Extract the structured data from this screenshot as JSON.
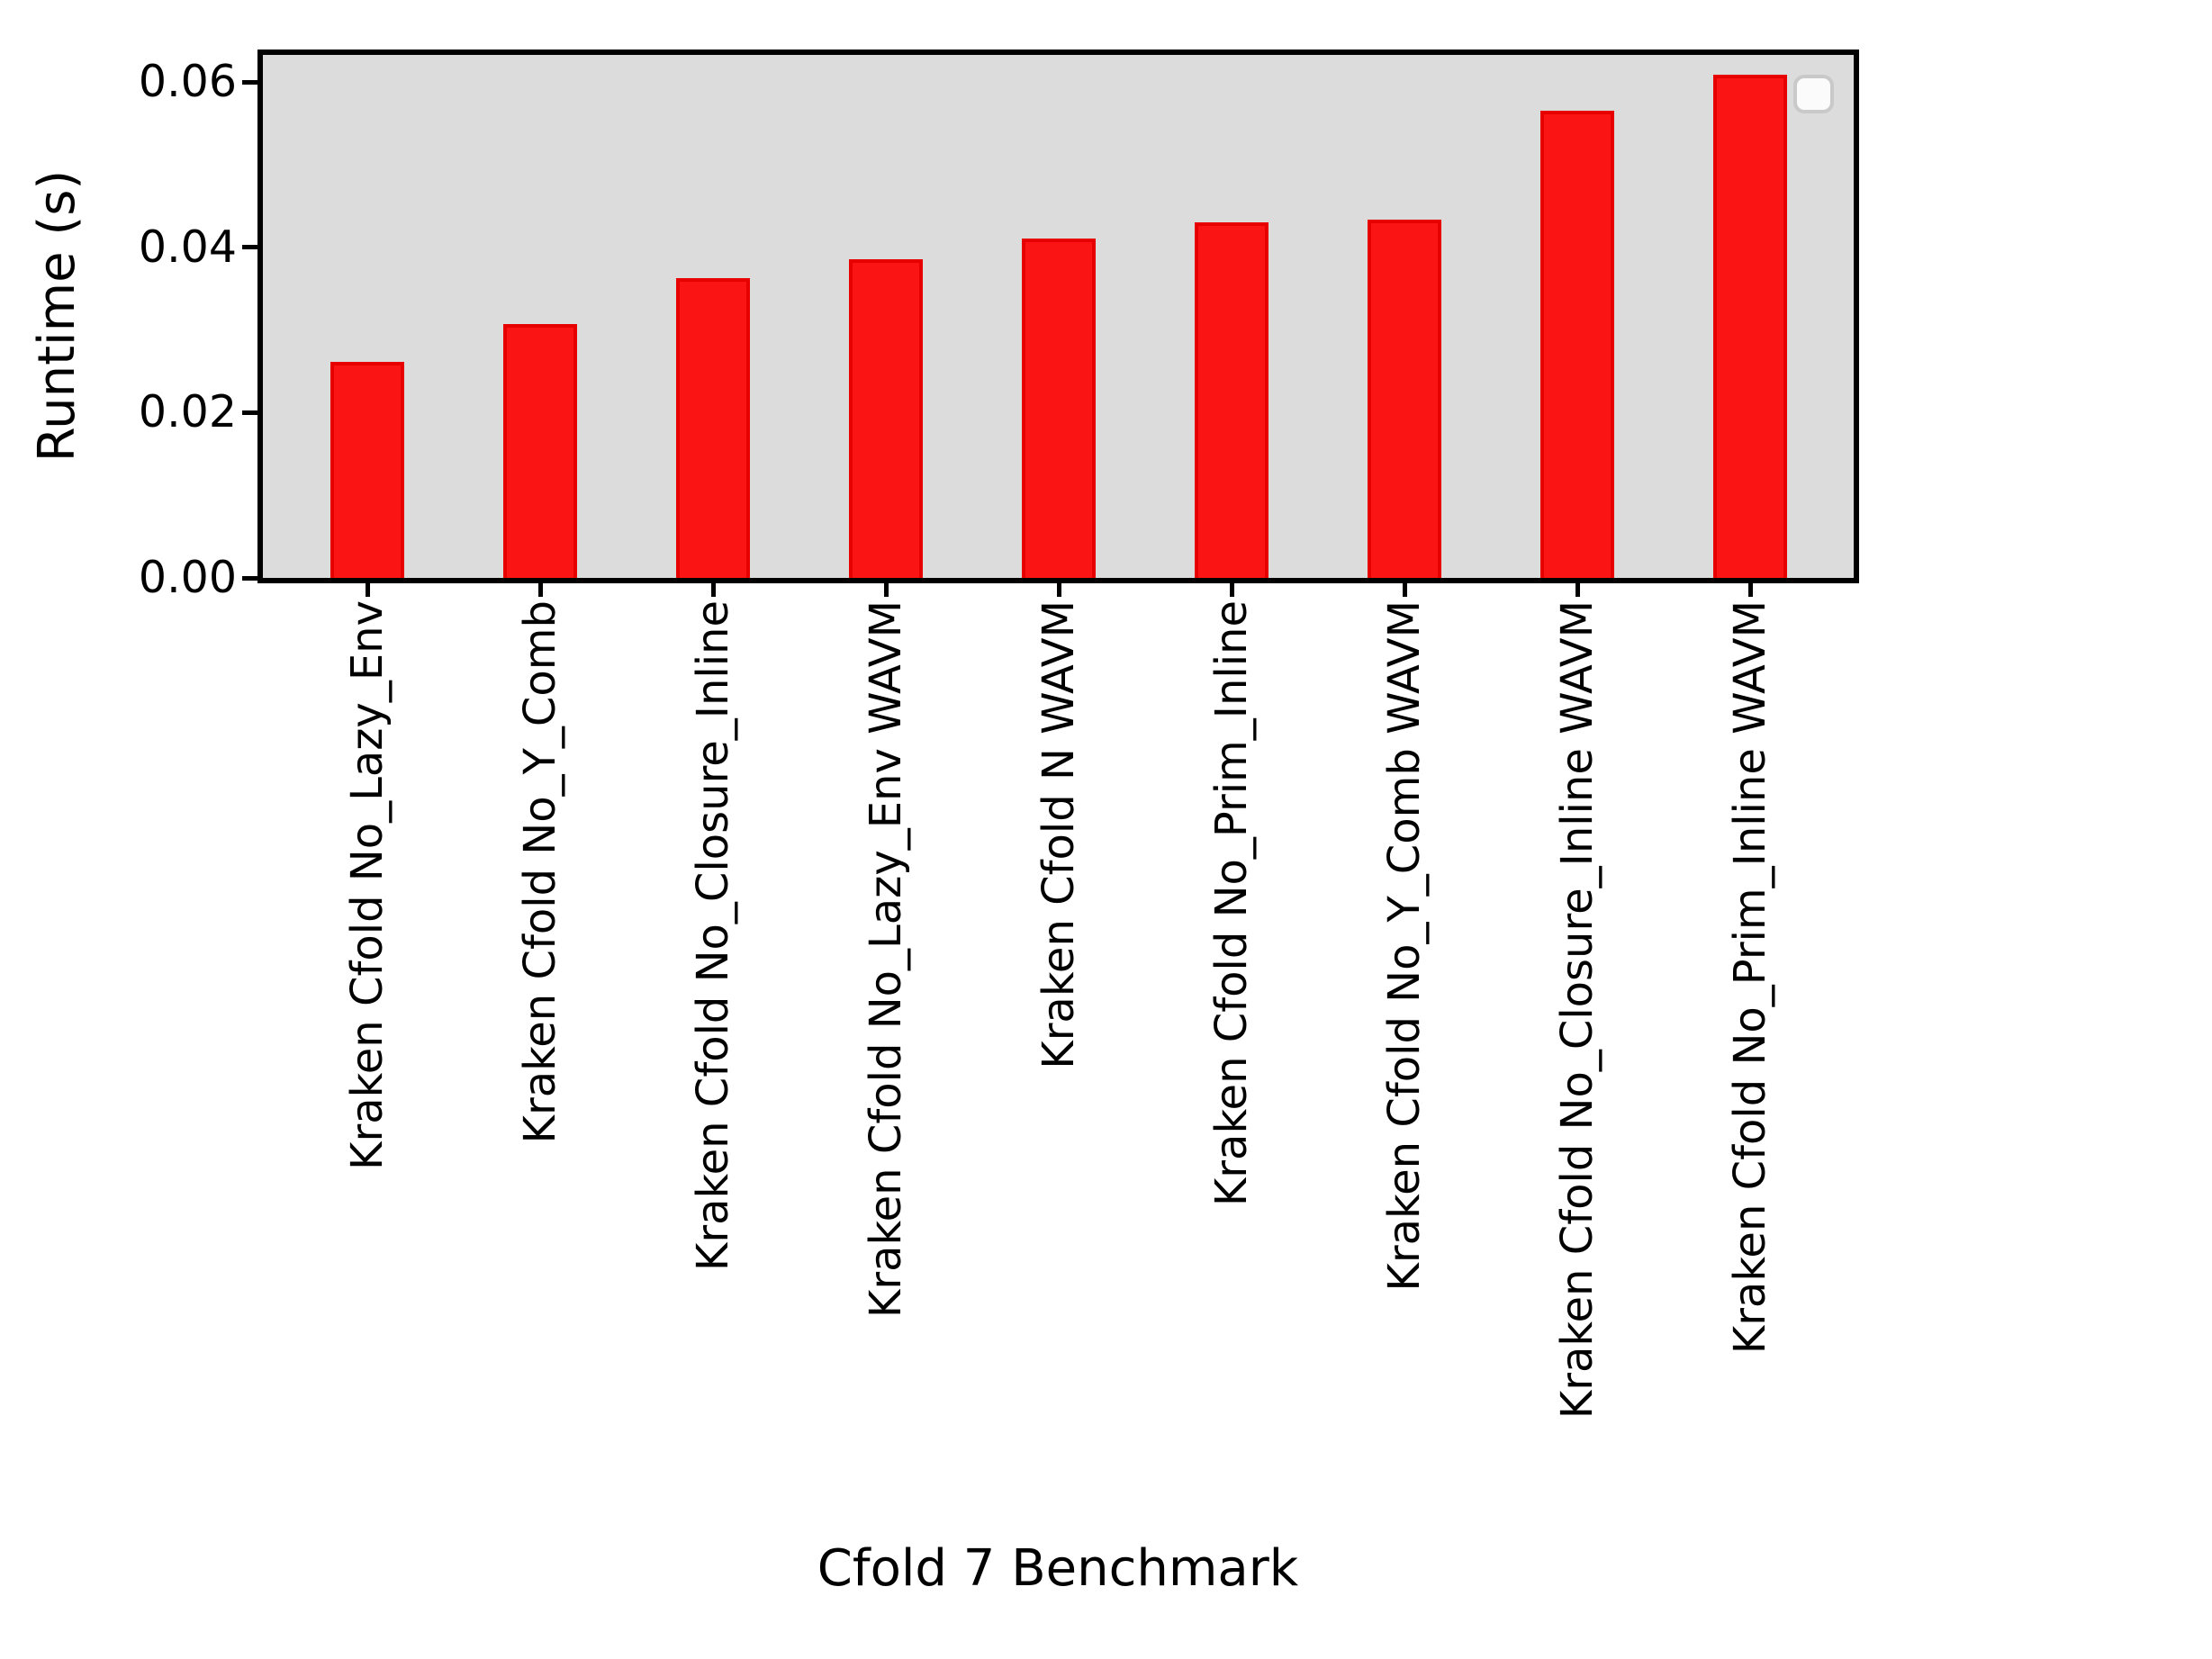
{
  "chart_data": {
    "type": "bar",
    "title": "",
    "xlabel": "Cfold 7 Benchmark",
    "ylabel": "Runtime (s)",
    "categories": [
      "Kraken Cfold No_Lazy_Env",
      "Kraken Cfold No_Y_Comb",
      "Kraken Cfold No_Closure_Inline",
      "Kraken Cfold No_Lazy_Env WAVM",
      "Kraken Cfold N WAVM",
      "Kraken Cfold No_Prim_Inline",
      "Kraken Cfold No_Y_Comb WAVM",
      "Kraken Cfold No_Closure_Inline WAVM",
      "Kraken Cfold No_Prim_Inline WAVM"
    ],
    "values": [
      0.0262,
      0.0307,
      0.0363,
      0.0386,
      0.0411,
      0.043,
      0.0434,
      0.0566,
      0.0609
    ],
    "series": [
      {
        "name": "Runtime",
        "values": [
          0.0262,
          0.0307,
          0.0363,
          0.0386,
          0.0411,
          0.043,
          0.0434,
          0.0566,
          0.0609
        ]
      }
    ],
    "ylim": [
      0,
      0.0633
    ],
    "yticks": [
      0,
      0.02,
      0.04,
      0.06
    ],
    "ytick_labels": [
      "0.00",
      "0.02",
      "0.04",
      "0.06"
    ],
    "x_tick_rotation": 90,
    "grid": false,
    "legend": {
      "present": true,
      "entries": [],
      "position": "upper right"
    }
  },
  "style": {
    "figure_bg": "#ffffff",
    "plot_bg": "#dcdcdc",
    "bar_fill": "#fa1414",
    "bar_edge": "#e60000",
    "spine_color": "#000000",
    "text_color": "#000000",
    "legend_bg": "#fbfbfb",
    "legend_border": "#c9c9c9"
  }
}
